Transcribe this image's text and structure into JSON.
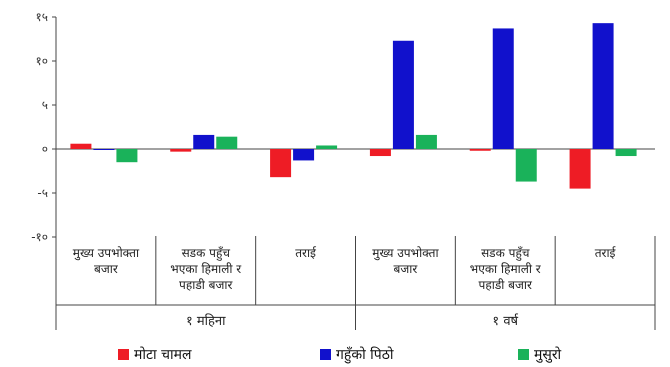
{
  "chart_data": {
    "type": "bar",
    "title": "",
    "xlabel": "",
    "ylabel": "",
    "ylim": [
      -10,
      15
    ],
    "yticks": [
      15,
      10,
      5,
      0,
      -5,
      -10
    ],
    "ytick_labels": [
      "१५",
      "१०",
      "५",
      "०",
      "-५",
      "-१०"
    ],
    "grid": false,
    "legend_position": "bottom",
    "categories": [
      [
        "मुख्य उपभोक्ता",
        "बजार"
      ],
      [
        "सडक पहुँच",
        "भएका हिमाली र",
        "पहाडी बजार"
      ],
      [
        "तराई"
      ],
      [
        "मुख्य उपभोक्ता",
        "बजार"
      ],
      [
        "सडक पहुँच",
        "भएका हिमाली र",
        "पहाडी बजार"
      ],
      [
        "तराई"
      ]
    ],
    "groups": [
      {
        "label": "१ महिना",
        "span": [
          0,
          2
        ]
      },
      {
        "label": "१ वर्ष",
        "span": [
          3,
          5
        ]
      }
    ],
    "series": [
      {
        "name": "मोटा चामल",
        "color": "#ee1c25",
        "values": [
          0.6,
          -0.3,
          -3.2,
          -0.8,
          -0.2,
          -4.5
        ]
      },
      {
        "name": "गहुँको पिठो",
        "color": "#1111cc",
        "values": [
          0.0,
          1.6,
          -1.3,
          12.3,
          13.7,
          14.3
        ]
      },
      {
        "name": "मुसुरो",
        "color": "#1ab25a",
        "values": [
          -1.5,
          1.4,
          0.4,
          1.6,
          -3.7,
          -0.8
        ]
      }
    ]
  }
}
